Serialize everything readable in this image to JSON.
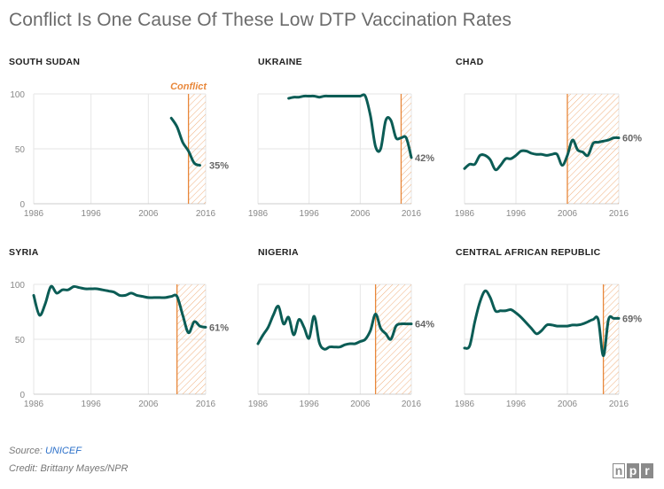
{
  "title": "Conflict Is One Cause Of These Low DTP Vaccination Rates",
  "footer": {
    "source_label": "Source: ",
    "source_link": "UNICEF",
    "credit": "Credit: Brittany Mayes/NPR"
  },
  "logo": [
    "n",
    "p",
    "r"
  ],
  "colors": {
    "line": "#0b5c55",
    "conflict": "#e8873a",
    "grid": "#e6e6e6",
    "axis": "#cccccc"
  },
  "chart_data": [
    {
      "type": "line",
      "name": "SOUTH SUDAN",
      "xlim": [
        1986,
        2016
      ],
      "ylim": [
        0,
        100
      ],
      "xticks": [
        "1986",
        "1996",
        "2006",
        "2016"
      ],
      "yticks": [
        "0",
        "50",
        "100"
      ],
      "conflict_start": 2013,
      "conflict_label": "Conflict",
      "end_label": "35%",
      "x": [
        2010,
        2011,
        2012,
        2013,
        2014,
        2015
      ],
      "y": [
        78,
        70,
        56,
        48,
        37,
        35
      ]
    },
    {
      "type": "line",
      "name": "UKRAINE",
      "xlim": [
        1986,
        2016
      ],
      "ylim": [
        0,
        100
      ],
      "xticks": [
        "1986",
        "1996",
        "2006",
        "2016"
      ],
      "yticks": [],
      "conflict_start": 2014,
      "conflict_label": "",
      "end_label": "42%",
      "x": [
        1992,
        1993,
        1994,
        1995,
        1996,
        1997,
        1998,
        1999,
        2000,
        2001,
        2002,
        2003,
        2004,
        2005,
        2006,
        2007,
        2008,
        2009,
        2010,
        2011,
        2012,
        2013,
        2014,
        2015,
        2016
      ],
      "y": [
        96,
        97,
        97,
        98,
        98,
        98,
        97,
        98,
        98,
        98,
        98,
        98,
        98,
        98,
        98,
        98,
        80,
        52,
        50,
        76,
        76,
        60,
        60,
        60,
        42
      ]
    },
    {
      "type": "line",
      "name": "CHAD",
      "xlim": [
        1986,
        2016
      ],
      "ylim": [
        0,
        100
      ],
      "xticks": [
        "1986",
        "1996",
        "2006",
        "2016"
      ],
      "yticks": [],
      "conflict_start": 2006,
      "conflict_label": "",
      "end_label": "60%",
      "x": [
        1986,
        1987,
        1988,
        1989,
        1990,
        1991,
        1992,
        1993,
        1994,
        1995,
        1996,
        1997,
        1998,
        1999,
        2000,
        2001,
        2002,
        2003,
        2004,
        2005,
        2006,
        2007,
        2008,
        2009,
        2010,
        2011,
        2012,
        2013,
        2014,
        2015,
        2016
      ],
      "y": [
        32,
        36,
        36,
        44,
        44,
        40,
        31,
        35,
        41,
        41,
        44,
        48,
        48,
        46,
        45,
        45,
        44,
        45,
        45,
        35,
        44,
        58,
        49,
        47,
        44,
        55,
        56,
        57,
        58,
        60,
        60
      ]
    },
    {
      "type": "line",
      "name": "SYRIA",
      "xlim": [
        1986,
        2016
      ],
      "ylim": [
        0,
        100
      ],
      "xticks": [
        "1986",
        "1996",
        "2006",
        "2016"
      ],
      "yticks": [
        "0",
        "50",
        "100"
      ],
      "conflict_start": 2011,
      "conflict_label": "",
      "end_label": "61%",
      "x": [
        1986,
        1987,
        1988,
        1989,
        1990,
        1991,
        1992,
        1993,
        1994,
        1995,
        1996,
        1997,
        1998,
        1999,
        2000,
        2001,
        2002,
        2003,
        2004,
        2005,
        2006,
        2007,
        2008,
        2009,
        2010,
        2011,
        2012,
        2013,
        2014,
        2015,
        2016
      ],
      "y": [
        90,
        72,
        82,
        98,
        92,
        95,
        95,
        98,
        97,
        96,
        96,
        96,
        95,
        94,
        93,
        90,
        90,
        92,
        90,
        89,
        88,
        88,
        88,
        88,
        89,
        89,
        72,
        56,
        66,
        62,
        61
      ]
    },
    {
      "type": "line",
      "name": "NIGERIA",
      "xlim": [
        1986,
        2016
      ],
      "ylim": [
        0,
        100
      ],
      "xticks": [
        "1986",
        "1996",
        "2006",
        "2016"
      ],
      "yticks": [],
      "conflict_start": 2009,
      "conflict_label": "",
      "end_label": "64%",
      "x": [
        1986,
        1987,
        1988,
        1989,
        1990,
        1991,
        1992,
        1993,
        1994,
        1995,
        1996,
        1997,
        1998,
        1999,
        2000,
        2001,
        2002,
        2003,
        2004,
        2005,
        2006,
        2007,
        2008,
        2009,
        2010,
        2011,
        2012,
        2013,
        2014,
        2015,
        2016
      ],
      "y": [
        46,
        54,
        61,
        72,
        80,
        64,
        70,
        54,
        68,
        61,
        51,
        71,
        47,
        41,
        43,
        43,
        43,
        45,
        46,
        46,
        48,
        50,
        58,
        73,
        60,
        55,
        50,
        62,
        64,
        64,
        64
      ]
    },
    {
      "type": "line",
      "name": "CENTRAL AFRICAN REPUBLIC",
      "xlim": [
        1986,
        2016
      ],
      "ylim": [
        0,
        100
      ],
      "xticks": [
        "1986",
        "1996",
        "2006",
        "2016"
      ],
      "yticks": [],
      "conflict_start": 2013,
      "conflict_label": "",
      "end_label": "69%",
      "x": [
        1986,
        1987,
        1988,
        1989,
        1990,
        1991,
        1992,
        1993,
        1994,
        1995,
        1996,
        1997,
        1998,
        1999,
        2000,
        2001,
        2002,
        2003,
        2004,
        2005,
        2006,
        2007,
        2008,
        2009,
        2010,
        2011,
        2012,
        2013,
        2014,
        2015,
        2016
      ],
      "y": [
        42,
        44,
        66,
        84,
        94,
        88,
        76,
        76,
        76,
        77,
        74,
        70,
        65,
        60,
        55,
        58,
        63,
        63,
        62,
        62,
        62,
        63,
        63,
        64,
        66,
        68,
        68,
        35,
        68,
        69,
        69
      ]
    }
  ]
}
